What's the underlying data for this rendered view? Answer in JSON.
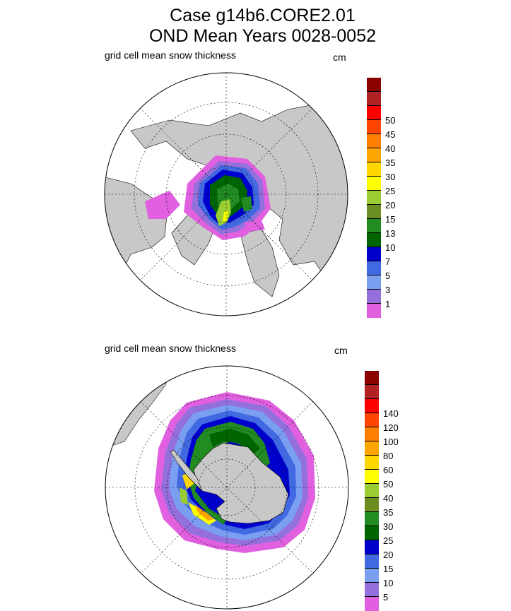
{
  "title": {
    "line1": "Case g14b6.CORE2.01",
    "line2": "OND Mean    Years 0028-0052"
  },
  "panels": [
    {
      "id": "north",
      "label": "grid cell mean snow thickness",
      "units": "cm",
      "colorbar": {
        "colors": [
          "#e060e0",
          "#9370db",
          "#7a9ff0",
          "#4169e1",
          "#0000cd",
          "#006400",
          "#228b22",
          "#6b8e23",
          "#9acd32",
          "#ffff00",
          "#ffd700",
          "#ffa500",
          "#ff7f00",
          "#ff4500",
          "#ff0000",
          "#b22222",
          "#8b0000"
        ],
        "labels": [
          "1",
          "3",
          "5",
          "7",
          "10",
          "13",
          "15",
          "20",
          "25",
          "30",
          "35",
          "40",
          "45",
          "50"
        ]
      }
    },
    {
      "id": "south",
      "label": "grid cell mean snow thickness",
      "units": "cm",
      "colorbar": {
        "colors": [
          "#e060e0",
          "#9370db",
          "#7a9ff0",
          "#4169e1",
          "#0000cd",
          "#006400",
          "#228b22",
          "#6b8e23",
          "#9acd32",
          "#ffff00",
          "#ffd700",
          "#ffa500",
          "#ff7f00",
          "#ff4500",
          "#ff0000",
          "#b22222",
          "#8b0000"
        ],
        "labels": [
          "5",
          "10",
          "15",
          "20",
          "25",
          "30",
          "35",
          "40",
          "50",
          "60",
          "80",
          "100",
          "120",
          "140"
        ]
      }
    }
  ]
}
